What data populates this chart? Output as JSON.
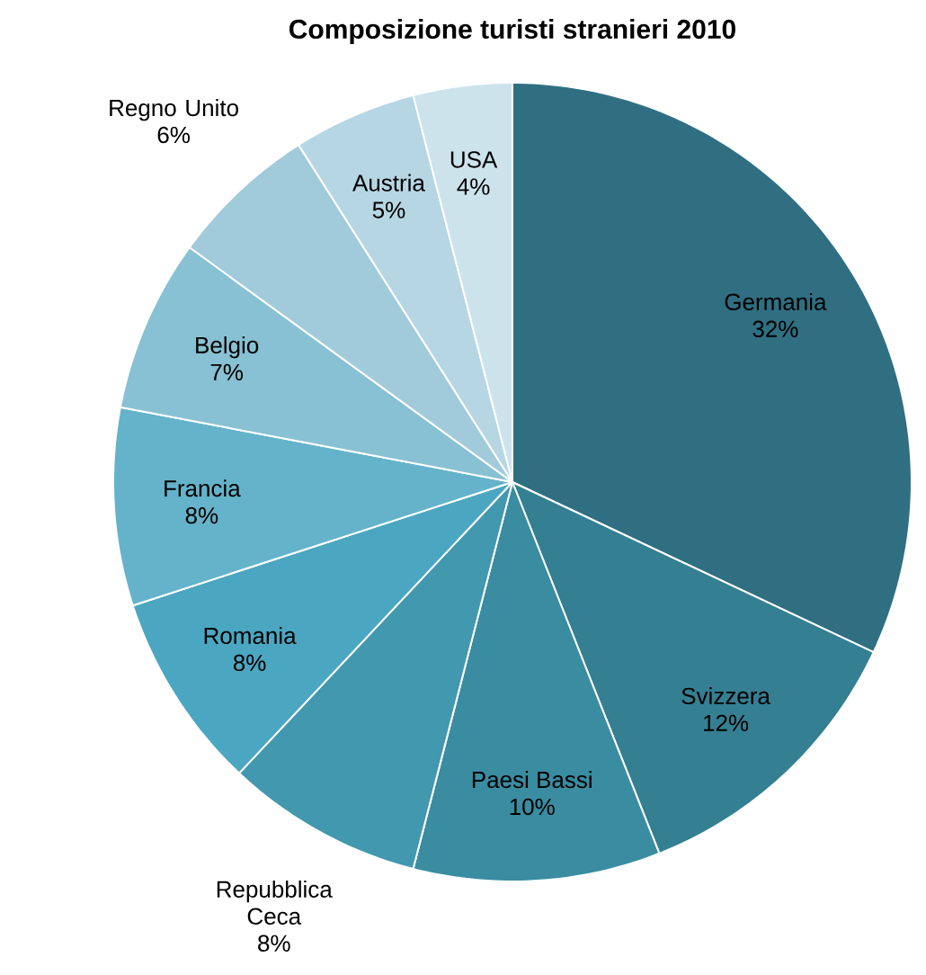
{
  "chart_data": {
    "type": "pie",
    "title": "Composizione turisti stranieri 2010",
    "categories": [
      "Germania",
      "Svizzera",
      "Paesi Bassi",
      "Repubblica Ceca",
      "Romania",
      "Francia",
      "Belgio",
      "Regno Unito",
      "Austria",
      "USA"
    ],
    "values": [
      32,
      12,
      10,
      8,
      8,
      8,
      7,
      6,
      5,
      4
    ],
    "value_labels": [
      "32%",
      "12%",
      "10%",
      "8%",
      "8%",
      "8%",
      "7%",
      "6%",
      "5%",
      "4%"
    ],
    "colors": [
      "#2f6f81",
      "#347f92",
      "#3a8ca1",
      "#4298ae",
      "#4ba7c1",
      "#65b3ca",
      "#88c1d3",
      "#a1cbdb",
      "#b6d6e3",
      "#cde3ec"
    ]
  }
}
